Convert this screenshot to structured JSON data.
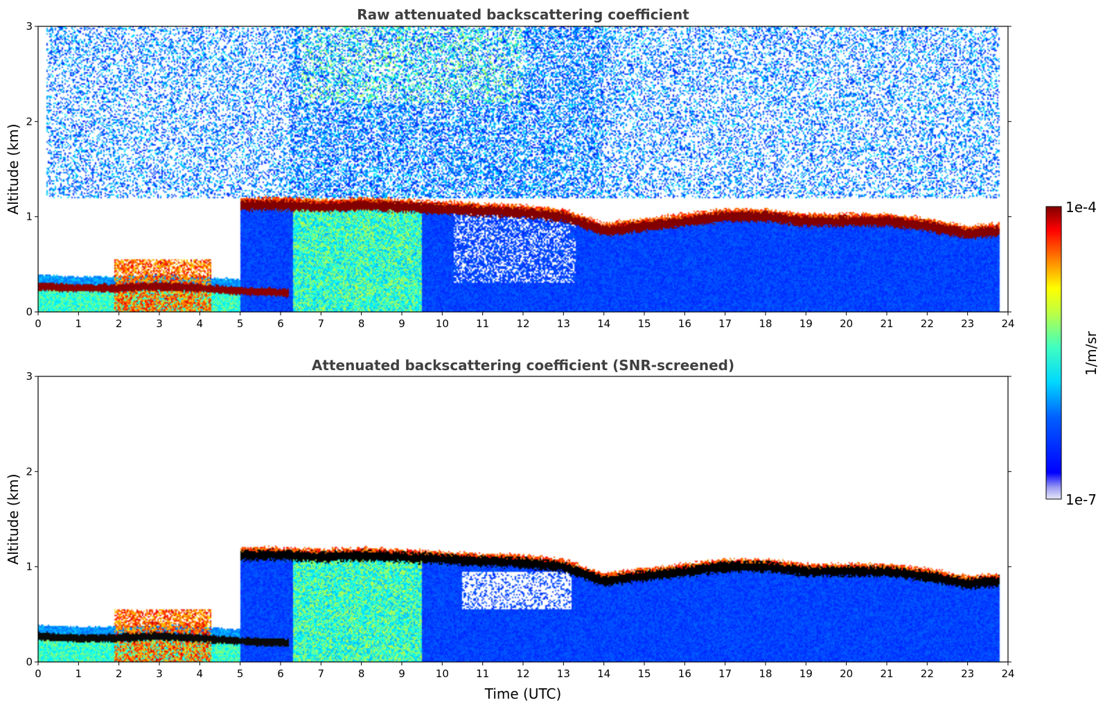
{
  "chart_data": [
    {
      "type": "heatmap",
      "title": "Raw attenuated backscattering coefficient",
      "xlabel": "",
      "ylabel": "Altitude (km)",
      "xlim": [
        0,
        24
      ],
      "ylim": [
        0,
        3
      ],
      "x_ticks": [
        "0",
        "1",
        "2",
        "3",
        "4",
        "5",
        "6",
        "7",
        "8",
        "9",
        "10",
        "11",
        "12",
        "13",
        "14",
        "15",
        "16",
        "17",
        "18",
        "19",
        "20",
        "21",
        "22",
        "23",
        "24"
      ],
      "y_ticks": [
        "0",
        "1",
        "2",
        "3"
      ],
      "grid": false,
      "features": {
        "cloud_base_km": [
          {
            "t": 5.0,
            "h": 1.12
          },
          {
            "t": 6.2,
            "h": 1.12
          },
          {
            "t": 7.0,
            "h": 1.1
          },
          {
            "t": 8.0,
            "h": 1.12
          },
          {
            "t": 9.0,
            "h": 1.1
          },
          {
            "t": 10.0,
            "h": 1.08
          },
          {
            "t": 11.0,
            "h": 1.06
          },
          {
            "t": 12.0,
            "h": 1.04
          },
          {
            "t": 13.0,
            "h": 1.0
          },
          {
            "t": 14.0,
            "h": 0.85
          },
          {
            "t": 15.0,
            "h": 0.9
          },
          {
            "t": 16.0,
            "h": 0.95
          },
          {
            "t": 17.0,
            "h": 1.0
          },
          {
            "t": 18.0,
            "h": 1.0
          },
          {
            "t": 19.0,
            "h": 0.95
          },
          {
            "t": 20.0,
            "h": 0.95
          },
          {
            "t": 21.0,
            "h": 0.95
          },
          {
            "t": 22.0,
            "h": 0.9
          },
          {
            "t": 23.0,
            "h": 0.82
          },
          {
            "t": 23.8,
            "h": 0.85
          }
        ],
        "low_layer_km": [
          {
            "t": 0.0,
            "h": 0.27
          },
          {
            "t": 1.0,
            "h": 0.25
          },
          {
            "t": 2.0,
            "h": 0.25
          },
          {
            "t": 3.0,
            "h": 0.27
          },
          {
            "t": 4.0,
            "h": 0.25
          },
          {
            "t": 5.0,
            "h": 0.22
          },
          {
            "t": 6.2,
            "h": 0.2
          }
        ]
      }
    },
    {
      "type": "heatmap",
      "title": "Attenuated backscattering coefficient (SNR-screened)",
      "xlabel": "Time (UTC)",
      "ylabel": "Altitude (km)",
      "xlim": [
        0,
        24
      ],
      "ylim": [
        0,
        3
      ],
      "x_ticks": [
        "0",
        "1",
        "2",
        "3",
        "4",
        "5",
        "6",
        "7",
        "8",
        "9",
        "10",
        "11",
        "12",
        "13",
        "14",
        "15",
        "16",
        "17",
        "18",
        "19",
        "20",
        "21",
        "22",
        "23",
        "24"
      ],
      "y_ticks": [
        "0",
        "1",
        "2",
        "3"
      ],
      "grid": false
    }
  ],
  "colorbar": {
    "max_label": "1e-4",
    "min_label": "1e-7",
    "label": "1/m/sr",
    "colormap": "jet",
    "colors": [
      "#e6e6f8",
      "#8c8cf0",
      "#0000ff",
      "#0080ff",
      "#00ffff",
      "#80ff80",
      "#ffff00",
      "#ff8000",
      "#ff0000",
      "#800000"
    ]
  }
}
